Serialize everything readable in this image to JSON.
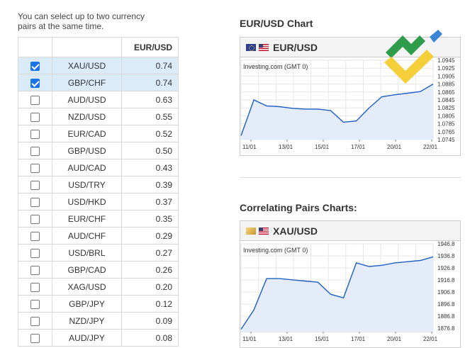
{
  "intro_text": "You can select up to two currency pairs at the same time.",
  "table": {
    "header_pair": "",
    "header_value": "EUR/USD",
    "rows": [
      {
        "pair": "XAU/USD",
        "value": "0.74",
        "checked": true
      },
      {
        "pair": "GBP/CHF",
        "value": "0.74",
        "checked": true
      },
      {
        "pair": "AUD/USD",
        "value": "0.63",
        "checked": false
      },
      {
        "pair": "NZD/USD",
        "value": "0.55",
        "checked": false
      },
      {
        "pair": "EUR/CAD",
        "value": "0.52",
        "checked": false
      },
      {
        "pair": "GBP/USD",
        "value": "0.50",
        "checked": false
      },
      {
        "pair": "AUD/CAD",
        "value": "0.43",
        "checked": false
      },
      {
        "pair": "USD/TRY",
        "value": "0.39",
        "checked": false
      },
      {
        "pair": "USD/HKD",
        "value": "0.37",
        "checked": false
      },
      {
        "pair": "EUR/CHF",
        "value": "0.35",
        "checked": false
      },
      {
        "pair": "AUD/CHF",
        "value": "0.29",
        "checked": false
      },
      {
        "pair": "USD/BRL",
        "value": "0.27",
        "checked": false
      },
      {
        "pair": "GBP/CAD",
        "value": "0.26",
        "checked": false
      },
      {
        "pair": "XAG/USD",
        "value": "0.20",
        "checked": false
      },
      {
        "pair": "GBP/JPY",
        "value": "0.12",
        "checked": false
      },
      {
        "pair": "NZD/JPY",
        "value": "0.09",
        "checked": false
      },
      {
        "pair": "AUD/JPY",
        "value": "0.08",
        "checked": false
      }
    ]
  },
  "main_chart_title": "EUR/USD Chart",
  "correlating_title": "Correlating Pairs Charts:",
  "colors": {
    "selected_row": "#dcebf8",
    "checkbox": "#1a73e8",
    "line": "#1f5fc4",
    "area": "#e3ecf8"
  },
  "chart_data": [
    {
      "type": "area",
      "symbol": "EUR/USD",
      "flag_icons": [
        "eu-flag-icon",
        "us-flag-icon"
      ],
      "source": "Investing.com (GMT 0)",
      "x_ticks": [
        "11/01",
        "13/01",
        "15/01",
        "17/01",
        "20/01",
        "22/01"
      ],
      "y_ticks": [
        "1.0945",
        "1.0925",
        "1.0905",
        "1.0885",
        "1.0865",
        "1.0845",
        "1.0825",
        "1.0805",
        "1.0785",
        "1.0765",
        "1.0745"
      ],
      "ylim": [
        1.0745,
        1.0945
      ],
      "values": [
        1.0755,
        1.0845,
        1.083,
        1.0828,
        1.0824,
        1.0822,
        1.0822,
        1.0818,
        1.0789,
        1.0792,
        1.0825,
        1.0853,
        1.0858,
        1.0862,
        1.0866,
        1.0885
      ]
    },
    {
      "type": "area",
      "symbol": "XAU/USD",
      "flag_icons": [
        "gold-flag-icon",
        "us-flag-icon"
      ],
      "source": "Investing.com (GMT 0)",
      "x_ticks": [
        "11/01",
        "13/01",
        "15/01",
        "17/01",
        "20/01",
        "22/01"
      ],
      "y_ticks": [
        "1946.8",
        "1936.8",
        "1926.8",
        "1916.8",
        "1906.8",
        "1896.8",
        "1886.8",
        "1876.8"
      ],
      "ylim": [
        1874,
        1946.8
      ],
      "values": [
        1876,
        1892,
        1918,
        1918,
        1917,
        1916,
        1915,
        1905,
        1902,
        1931,
        1928,
        1929,
        1931,
        1932,
        1933,
        1936
      ]
    }
  ]
}
